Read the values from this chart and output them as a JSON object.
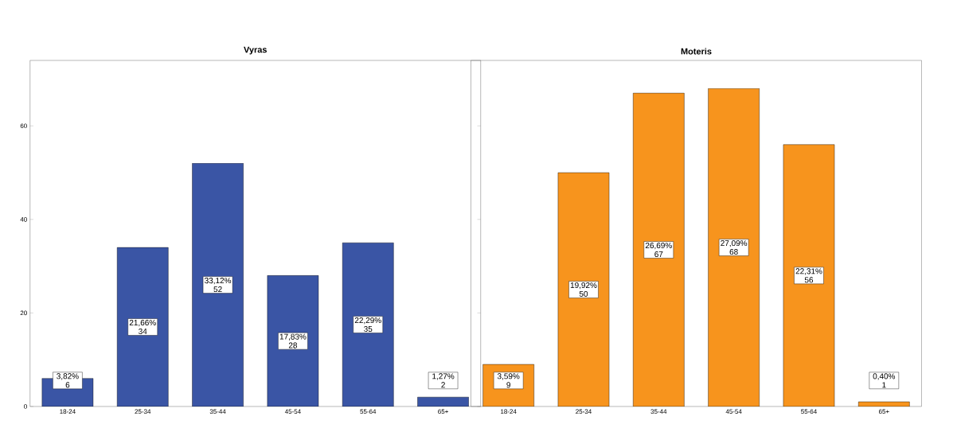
{
  "chart_data": [
    {
      "type": "bar",
      "title": "Vyras",
      "categories": [
        "18-24",
        "25-34",
        "35-44",
        "45-54",
        "55-64",
        "65+"
      ],
      "values": [
        6,
        34,
        52,
        28,
        35,
        2
      ],
      "color": "#3a55a5",
      "value_labels": [
        "3,82% 6",
        "21,66% 34",
        "33,12% 52",
        "17,83% 28",
        "22,29% 35",
        "1,27% 2"
      ],
      "ylim": [
        0,
        74
      ],
      "yticks": [
        0,
        20,
        40,
        60
      ],
      "grid": false
    },
    {
      "type": "bar",
      "title": "Moteris",
      "categories": [
        "18-24",
        "25-34",
        "35-44",
        "45-54",
        "55-64",
        "65+"
      ],
      "values": [
        9,
        50,
        67,
        68,
        56,
        1
      ],
      "color": "#f7941d",
      "value_labels": [
        "3,59% 9",
        "19,92% 50",
        "26,69% 67",
        "27,09% 68",
        "22,31% 56",
        "0,40% 1"
      ],
      "ylim": [
        0,
        74
      ],
      "tick_labels": "x",
      "grid": false
    }
  ]
}
